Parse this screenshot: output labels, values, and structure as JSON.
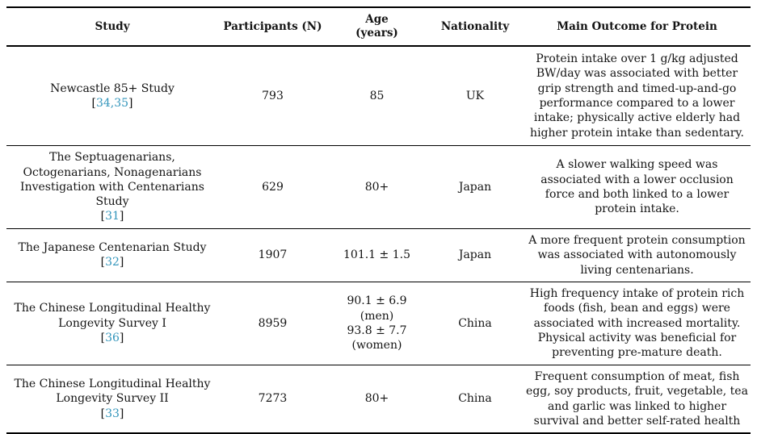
{
  "colors": {
    "citation_link": "#3295bb",
    "text": "#141414",
    "rule": "#000000"
  },
  "table": {
    "headers": {
      "study": "Study",
      "participants": "Participants (N)",
      "age": "Age\n(years)",
      "nationality": "Nationality",
      "outcome": "Main Outcome for Protein"
    },
    "rows": [
      {
        "study": "Newcastle 85+ Study",
        "citation": {
          "open": "[",
          "numbers": "34,35",
          "close": "]"
        },
        "participants": "793",
        "age": "85",
        "nationality": "UK",
        "outcome": "Protein intake over 1 g/kg adjusted BW/day was associated with better grip strength and timed-up-and-go performance compared to a lower intake; physically active elderly had higher protein intake than sedentary."
      },
      {
        "study": "The Septuagenarians, Octogenarians, Nonagenarians Investigation with Centenarians Study",
        "citation": {
          "open": "[",
          "numbers": "31",
          "close": "]"
        },
        "participants": "629",
        "age": "80+",
        "nationality": "Japan",
        "outcome": "A slower walking speed was associated with a lower occlusion force and both linked to a lower protein intake."
      },
      {
        "study": "The Japanese Centenarian Study",
        "citation": {
          "open": "[",
          "numbers": "32",
          "close": "]"
        },
        "participants": "1907",
        "age": "101.1 ± 1.5",
        "nationality": "Japan",
        "outcome": "A more frequent protein consumption was associated with autonomously living centenarians."
      },
      {
        "study": "The Chinese Longitudinal Healthy Longevity Survey I",
        "citation": {
          "open": "[",
          "numbers": "36",
          "close": "]"
        },
        "participants": "8959",
        "age": "90.1 ± 6.9\n(men)\n93.8 ± 7.7\n(women)",
        "nationality": "China",
        "outcome": "High frequency intake of protein rich foods (fish, bean and eggs) were associated with increased mortality. Physical activity was beneficial for preventing pre-mature death."
      },
      {
        "study": "The Chinese Longitudinal Healthy Longevity Survey II",
        "citation": {
          "open": "[",
          "numbers": "33",
          "close": "]"
        },
        "participants": "7273",
        "age": "80+",
        "nationality": "China",
        "outcome": "Frequent consumption of meat, fish egg, soy products, fruit, vegetable, tea and garlic was linked to higher survival and better self-rated health"
      }
    ]
  }
}
